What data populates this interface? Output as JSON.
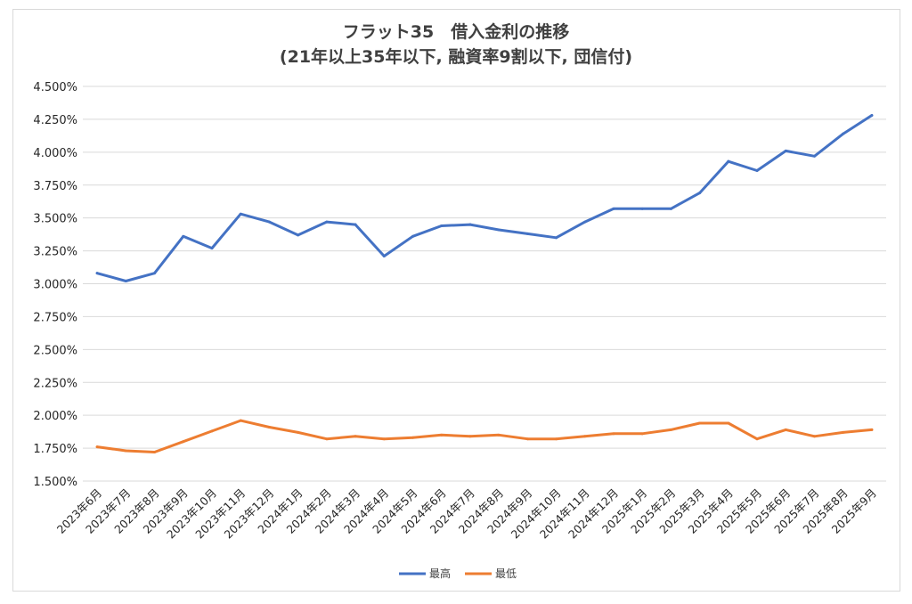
{
  "chart_data": {
    "type": "line",
    "title": "フラット35　借入金利の推移",
    "subtitle": "(21年以上35年以下, 融資率9割以下, 団信付)",
    "xlabel": "",
    "ylabel": "",
    "ylim": [
      1.5,
      4.5
    ],
    "y_ticks": [
      "4.500%",
      "4.250%",
      "4.000%",
      "3.750%",
      "3.500%",
      "3.250%",
      "3.000%",
      "2.750%",
      "2.500%",
      "2.250%",
      "2.000%",
      "1.750%",
      "1.500%"
    ],
    "categories": [
      "2023年6月",
      "2023年7月",
      "2023年8月",
      "2023年9月",
      "2023年10月",
      "2023年11月",
      "2023年12月",
      "2024年1月",
      "2024年2月",
      "2024年3月",
      "2024年4月",
      "2024年5月",
      "2024年6月",
      "2024年7月",
      "2024年8月",
      "2024年9月",
      "2024年10月",
      "2024年11月",
      "2024年12月",
      "2025年1月",
      "2025年2月",
      "2025年3月",
      "2025年4月",
      "2025年5月",
      "2025年6月",
      "2025年7月",
      "2025年8月",
      "2025年9月"
    ],
    "series": [
      {
        "name": "最高",
        "color": "#4472c4",
        "values": [
          3.08,
          3.02,
          3.08,
          3.36,
          3.27,
          3.53,
          3.47,
          3.37,
          3.47,
          3.45,
          3.21,
          3.36,
          3.44,
          3.45,
          3.41,
          3.38,
          3.35,
          3.47,
          3.57,
          3.57,
          3.57,
          3.69,
          3.93,
          3.86,
          4.01,
          3.97,
          4.14,
          4.28
        ]
      },
      {
        "name": "最低",
        "color": "#ed7d31",
        "values": [
          1.76,
          1.73,
          1.72,
          1.8,
          1.88,
          1.96,
          1.91,
          1.87,
          1.82,
          1.84,
          1.82,
          1.83,
          1.85,
          1.84,
          1.85,
          1.82,
          1.82,
          1.84,
          1.86,
          1.86,
          1.89,
          1.94,
          1.94,
          1.82,
          1.89,
          1.84,
          1.87,
          1.89
        ]
      }
    ],
    "grid": true,
    "legend_position": "bottom"
  }
}
